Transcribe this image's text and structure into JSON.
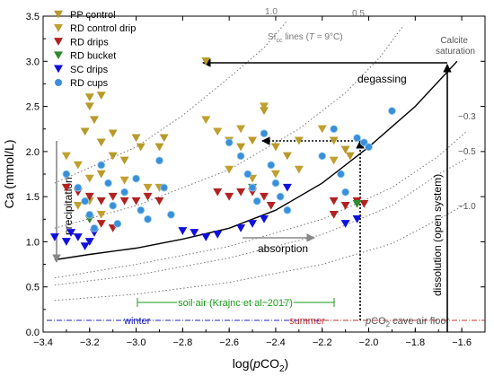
{
  "chart_data": {
    "type": "scatter",
    "xlabel": "log(pCO₂)",
    "ylabel": "Ca (mmol/L)",
    "xlim": [
      -3.4,
      -1.5
    ],
    "ylim": [
      0,
      3.5
    ],
    "xticks": [
      -3.4,
      -3.2,
      -3.0,
      -2.8,
      -2.6,
      -2.4,
      -2.2,
      -2.0,
      -1.8,
      -1.6
    ],
    "xtick_labels": [
      "−3.4",
      "−3.2",
      "−3.0",
      "−2.8",
      "−2.6",
      "−2.4",
      "−2.2",
      "−2.0",
      "−1.8",
      "−1.6"
    ],
    "yticks": [
      0.0,
      0.5,
      1.0,
      1.5,
      2.0,
      2.5,
      3.0,
      3.5
    ],
    "ytick_labels": [
      "0.0",
      "0.5",
      "1.0",
      "1.5",
      "2.0",
      "2.5",
      "3.0",
      "3.5"
    ],
    "legend_position": "top-left",
    "series": [
      {
        "name": "PP control",
        "marker": "triangle-down",
        "color": "#b89a2b",
        "points": [
          [
            -3.2,
            2.6
          ],
          [
            -3.15,
            2.62
          ],
          [
            -3.2,
            2.5
          ],
          [
            -3.18,
            2.35
          ],
          [
            -3.22,
            2.22
          ],
          [
            -3.15,
            2.1
          ],
          [
            -3.1,
            2.2
          ],
          [
            -3.0,
            2.15
          ],
          [
            -2.98,
            2.05
          ],
          [
            -2.9,
            2.05
          ],
          [
            -2.88,
            2.15
          ],
          [
            -3.1,
            1.95
          ],
          [
            -3.05,
            1.9
          ],
          [
            -3.15,
            1.75
          ],
          [
            -2.7,
            3.0
          ],
          [
            -2.55,
            2.05
          ],
          [
            -2.5,
            2.12
          ],
          [
            -2.45,
            2.45
          ],
          [
            -2.4,
            2.05
          ],
          [
            -2.35,
            1.95
          ],
          [
            -2.3,
            2.12
          ],
          [
            -2.15,
            2.12
          ],
          [
            -2.1,
            2.02
          ],
          [
            -2.08,
            1.95
          ]
        ]
      },
      {
        "name": "RD control drip",
        "marker": "triangle-down",
        "color": "#c0a030",
        "points": [
          [
            -3.3,
            1.95
          ],
          [
            -3.25,
            1.85
          ],
          [
            -3.2,
            1.7
          ],
          [
            -3.05,
            1.68
          ],
          [
            -2.95,
            1.6
          ],
          [
            -2.9,
            1.6
          ],
          [
            -3.25,
            1.4
          ],
          [
            -3.2,
            1.45
          ],
          [
            -3.15,
            1.3
          ],
          [
            -2.7,
            2.35
          ],
          [
            -2.65,
            2.22
          ],
          [
            -2.6,
            2.12
          ],
          [
            -2.55,
            2.25
          ],
          [
            -2.45,
            2.5
          ],
          [
            -2.2,
            2.25
          ],
          [
            -2.15,
            1.9
          ],
          [
            -2.6,
            1.8
          ],
          [
            -2.5,
            1.7
          ],
          [
            -2.4,
            1.75
          ],
          [
            -2.3,
            1.8
          ]
        ]
      },
      {
        "name": "RD drips",
        "marker": "triangle-down",
        "color": "#b22222",
        "points": [
          [
            -3.3,
            1.6
          ],
          [
            -3.25,
            1.55
          ],
          [
            -3.2,
            1.5
          ],
          [
            -3.15,
            1.45
          ],
          [
            -3.1,
            1.5
          ],
          [
            -3.05,
            1.45
          ],
          [
            -3.0,
            1.45
          ],
          [
            -2.95,
            1.5
          ],
          [
            -2.9,
            1.45
          ],
          [
            -3.2,
            1.25
          ],
          [
            -3.15,
            1.2
          ],
          [
            -3.1,
            1.15
          ],
          [
            -2.65,
            1.55
          ],
          [
            -2.6,
            1.5
          ],
          [
            -2.55,
            1.55
          ],
          [
            -2.5,
            1.55
          ],
          [
            -2.45,
            1.5
          ],
          [
            -2.42,
            1.4
          ],
          [
            -2.15,
            1.45
          ],
          [
            -2.1,
            1.4
          ],
          [
            -2.05,
            1.45
          ],
          [
            -2.02,
            1.42
          ],
          [
            -2.15,
            1.3
          ]
        ]
      },
      {
        "name": "RD bucket",
        "marker": "triangle-down",
        "color": "#2e8b2e",
        "points": [
          [
            -3.2,
            1.25
          ],
          [
            -2.5,
            1.6
          ],
          [
            -2.05,
            1.42
          ]
        ]
      },
      {
        "name": "SC drips",
        "marker": "triangle-down",
        "color": "#1010dd",
        "points": [
          [
            -3.35,
            1.05
          ],
          [
            -3.3,
            1.0
          ],
          [
            -3.28,
            1.1
          ],
          [
            -3.25,
            1.05
          ],
          [
            -3.22,
            0.95
          ],
          [
            -3.2,
            1.0
          ],
          [
            -3.18,
            1.1
          ],
          [
            -2.8,
            1.12
          ],
          [
            -2.75,
            1.1
          ],
          [
            -2.7,
            1.05
          ],
          [
            -2.65,
            1.08
          ],
          [
            -2.55,
            1.15
          ],
          [
            -2.5,
            1.2
          ],
          [
            -2.45,
            1.25
          ],
          [
            -2.1,
            1.2
          ],
          [
            -2.05,
            1.25
          ],
          [
            -2.35,
            1.6
          ]
        ]
      },
      {
        "name": "RD cups",
        "marker": "circle",
        "color": "#3a8fd8",
        "points": [
          [
            -3.3,
            1.75
          ],
          [
            -3.25,
            1.6
          ],
          [
            -3.22,
            1.45
          ],
          [
            -3.2,
            1.3
          ],
          [
            -3.18,
            1.15
          ],
          [
            -3.15,
            1.85
          ],
          [
            -3.12,
            1.65
          ],
          [
            -3.1,
            1.4
          ],
          [
            -3.08,
            1.2
          ],
          [
            -3.05,
            1.55
          ],
          [
            -3.0,
            1.7
          ],
          [
            -2.98,
            1.35
          ],
          [
            -2.95,
            1.25
          ],
          [
            -2.9,
            1.9
          ],
          [
            -2.88,
            1.6
          ],
          [
            -2.85,
            1.3
          ],
          [
            -2.6,
            2.1
          ],
          [
            -2.55,
            1.95
          ],
          [
            -2.52,
            1.75
          ],
          [
            -2.5,
            1.6
          ],
          [
            -2.48,
            1.45
          ],
          [
            -2.45,
            2.2
          ],
          [
            -2.42,
            1.85
          ],
          [
            -2.4,
            1.65
          ],
          [
            -2.38,
            1.5
          ],
          [
            -2.35,
            1.35
          ],
          [
            -2.2,
            1.95
          ],
          [
            -2.15,
            2.25
          ],
          [
            -2.12,
            1.75
          ],
          [
            -2.1,
            1.55
          ],
          [
            -2.05,
            2.15
          ],
          [
            -2.02,
            2.1
          ],
          [
            -2.0,
            2.05
          ],
          [
            -1.9,
            2.45
          ]
        ]
      }
    ],
    "lines": {
      "open_system_curve": [
        [
          -3.35,
          0.8
        ],
        [
          -3.2,
          0.86
        ],
        [
          -3.0,
          0.93
        ],
        [
          -2.8,
          1.03
        ],
        [
          -2.6,
          1.15
        ],
        [
          -2.4,
          1.35
        ],
        [
          -2.2,
          1.65
        ],
        [
          -2.0,
          2.05
        ],
        [
          -1.8,
          2.5
        ],
        [
          -1.62,
          3.0
        ]
      ],
      "si_lines": [
        {
          "label": "1.0",
          "points": [
            [
              -3.35,
              1.65
            ],
            [
              -3.0,
              2.05
            ],
            [
              -2.8,
              2.4
            ],
            [
              -2.6,
              2.82
            ],
            [
              -2.45,
              3.15
            ],
            [
              -2.35,
              3.45
            ]
          ]
        },
        {
          "label": "0.5",
          "points": [
            [
              -3.35,
              1.15
            ],
            [
              -3.0,
              1.4
            ],
            [
              -2.6,
              1.8
            ],
            [
              -2.3,
              2.25
            ],
            [
              -2.1,
              2.65
            ],
            [
              -1.95,
              3.05
            ],
            [
              -1.85,
              3.4
            ]
          ]
        },
        {
          "label": "−0.3",
          "points": [
            [
              -3.35,
              0.6
            ],
            [
              -3.0,
              0.75
            ],
            [
              -2.6,
              0.95
            ],
            [
              -2.2,
              1.25
            ],
            [
              -1.9,
              1.6
            ],
            [
              -1.7,
              1.95
            ],
            [
              -1.58,
              2.22
            ]
          ]
        },
        {
          "label": "−0.5",
          "points": [
            [
              -3.35,
              0.52
            ],
            [
              -3.0,
              0.63
            ],
            [
              -2.6,
              0.82
            ],
            [
              -2.2,
              1.08
            ],
            [
              -1.9,
              1.4
            ],
            [
              -1.7,
              1.75
            ],
            [
              -1.58,
              1.92
            ]
          ]
        },
        {
          "label": "−1.0",
          "points": [
            [
              -3.35,
              0.35
            ],
            [
              -3.0,
              0.42
            ],
            [
              -2.6,
              0.55
            ],
            [
              -2.2,
              0.75
            ],
            [
              -1.9,
              0.98
            ],
            [
              -1.7,
              1.25
            ],
            [
              -1.58,
              1.42
            ]
          ]
        }
      ]
    },
    "annotations": {
      "si_title": "SI",
      "si_title_sub": "cc",
      "si_title_rest_a": " lines (",
      "si_title_T": "T",
      "si_title_rest_b": " = 9°C)",
      "calcite_saturation_line1": "Calcite",
      "calcite_saturation_line2": "saturation",
      "degassing": "degassing",
      "absorption": "absorption",
      "precipitation": "precipitation",
      "dissolution": "dissolution (open system)",
      "soil_air": "soil air (Krajnc et al. 2017)",
      "winter": "winter",
      "summer": "summer",
      "cave_air_floor_p": "p",
      "cave_air_floor_rest": "CO",
      "cave_air_floor_sub": "2",
      "cave_air_floor_tail": " cave air floor",
      "neg03": "−0.3",
      "neg05": "−0.5",
      "neg10": "−1.0",
      "pos10": "1.0",
      "pos05": "0.5"
    },
    "colors": {
      "winter": "#2020c0",
      "summer": "#c03030",
      "cave_floor_label": "#555555",
      "soil_air": "#1a9a1a",
      "arrow_gray": "#888888",
      "si_line": "#777777"
    }
  }
}
